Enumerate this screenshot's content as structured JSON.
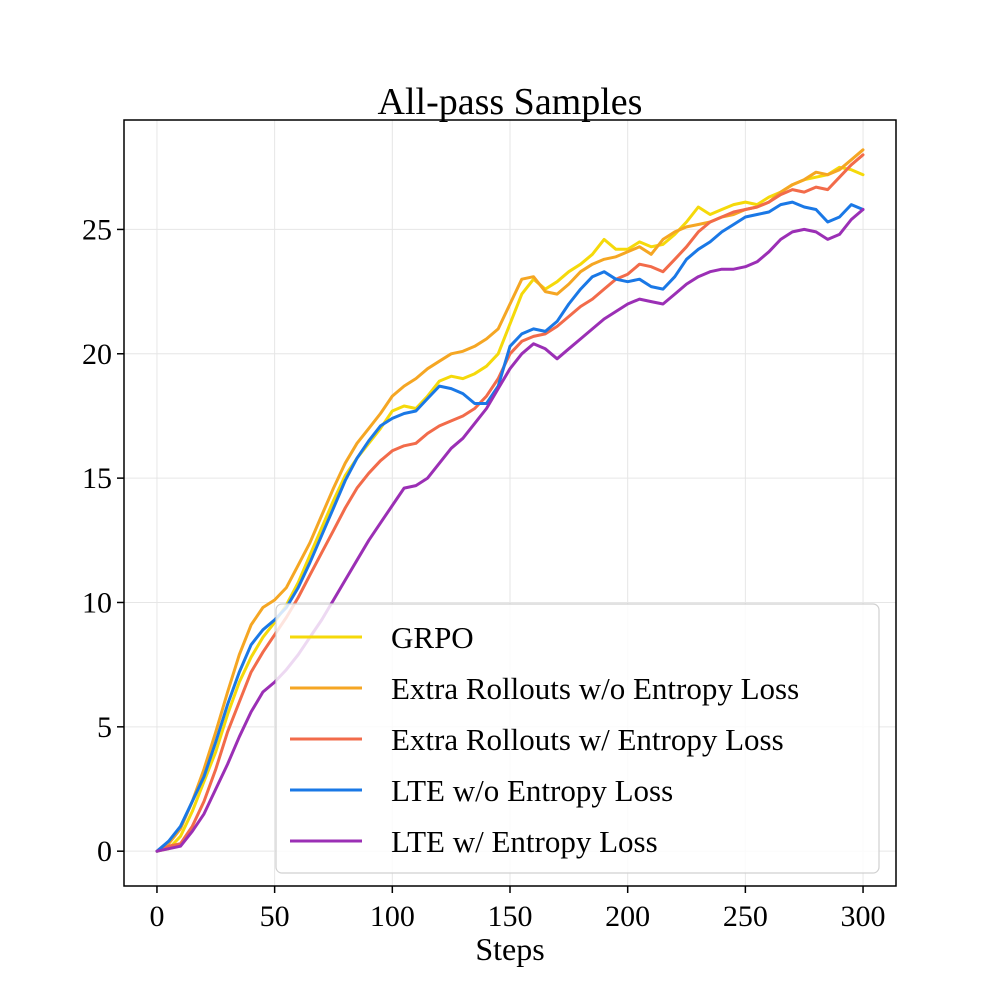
{
  "chart_data": {
    "type": "line",
    "title": "All-pass Samples",
    "xlabel": "Steps",
    "ylabel": "",
    "xlim": [
      -14,
      314
    ],
    "ylim": [
      -1.4,
      29.4
    ],
    "xticks": [
      0,
      50,
      100,
      150,
      200,
      250,
      300
    ],
    "yticks": [
      0,
      5,
      10,
      15,
      20,
      25
    ],
    "grid": true,
    "legend_position": "lower-right",
    "series": [
      {
        "name": "GRPO",
        "color": "#f5d90a",
        "x": [
          0,
          5,
          10,
          15,
          20,
          25,
          30,
          35,
          40,
          45,
          50,
          55,
          60,
          65,
          70,
          75,
          80,
          85,
          90,
          95,
          100,
          105,
          110,
          115,
          120,
          125,
          130,
          135,
          140,
          145,
          150,
          155,
          160,
          165,
          170,
          175,
          180,
          185,
          190,
          195,
          200,
          205,
          210,
          215,
          220,
          225,
          230,
          235,
          240,
          245,
          250,
          255,
          260,
          265,
          270,
          275,
          280,
          285,
          290,
          295,
          300
        ],
        "y": [
          0,
          0.1,
          0.6,
          1.6,
          2.8,
          4.0,
          5.5,
          6.8,
          7.8,
          8.6,
          9.2,
          9.9,
          10.8,
          11.9,
          13.0,
          14.1,
          15.1,
          15.8,
          16.4,
          17.0,
          17.7,
          17.9,
          17.8,
          18.3,
          18.9,
          19.1,
          19.0,
          19.2,
          19.5,
          20.0,
          21.2,
          22.4,
          23.0,
          22.6,
          22.9,
          23.3,
          23.6,
          24.0,
          24.6,
          24.2,
          24.2,
          24.5,
          24.3,
          24.4,
          24.8,
          25.3,
          25.9,
          25.6,
          25.8,
          26.0,
          26.1,
          26.0,
          26.3,
          26.5,
          26.8,
          27.0,
          27.1,
          27.2,
          27.5,
          27.4,
          27.2
        ]
      },
      {
        "name": "Extra Rollouts w/o Entropy Loss",
        "color": "#f5a623",
        "x": [
          0,
          5,
          10,
          15,
          20,
          25,
          30,
          35,
          40,
          45,
          50,
          55,
          60,
          65,
          70,
          75,
          80,
          85,
          90,
          95,
          100,
          105,
          110,
          115,
          120,
          125,
          130,
          135,
          140,
          145,
          150,
          155,
          160,
          165,
          170,
          175,
          180,
          185,
          190,
          195,
          200,
          205,
          210,
          215,
          220,
          225,
          230,
          235,
          240,
          245,
          250,
          255,
          260,
          265,
          270,
          275,
          280,
          285,
          290,
          295,
          300
        ],
        "y": [
          0,
          0.3,
          0.9,
          2.0,
          3.3,
          4.8,
          6.4,
          7.9,
          9.1,
          9.8,
          10.1,
          10.6,
          11.5,
          12.4,
          13.5,
          14.6,
          15.6,
          16.4,
          17.0,
          17.6,
          18.3,
          18.7,
          19.0,
          19.4,
          19.7,
          20.0,
          20.1,
          20.3,
          20.6,
          21.0,
          22.0,
          23.0,
          23.1,
          22.5,
          22.4,
          22.8,
          23.3,
          23.6,
          23.8,
          23.9,
          24.1,
          24.3,
          24.0,
          24.6,
          24.9,
          25.1,
          25.2,
          25.3,
          25.5,
          25.6,
          25.8,
          25.9,
          26.1,
          26.5,
          26.8,
          27.0,
          27.3,
          27.2,
          27.4,
          27.8,
          28.2
        ]
      },
      {
        "name": "Extra Rollouts w/ Entropy Loss",
        "color": "#f26b4a",
        "x": [
          0,
          5,
          10,
          15,
          20,
          25,
          30,
          35,
          40,
          45,
          50,
          55,
          60,
          65,
          70,
          75,
          80,
          85,
          90,
          95,
          100,
          105,
          110,
          115,
          120,
          125,
          130,
          135,
          140,
          145,
          150,
          155,
          160,
          165,
          170,
          175,
          180,
          185,
          190,
          195,
          200,
          205,
          210,
          215,
          220,
          225,
          230,
          235,
          240,
          245,
          250,
          255,
          260,
          265,
          270,
          275,
          280,
          285,
          290,
          295,
          300
        ],
        "y": [
          0,
          0.2,
          0.3,
          1.0,
          2.0,
          3.3,
          4.8,
          6.0,
          7.2,
          8.0,
          8.7,
          9.4,
          10.2,
          11.1,
          12.0,
          12.9,
          13.8,
          14.6,
          15.2,
          15.7,
          16.1,
          16.3,
          16.4,
          16.8,
          17.1,
          17.3,
          17.5,
          17.8,
          18.3,
          19.0,
          20.0,
          20.5,
          20.7,
          20.8,
          21.1,
          21.5,
          21.9,
          22.2,
          22.6,
          23.0,
          23.2,
          23.6,
          23.5,
          23.3,
          23.8,
          24.3,
          24.9,
          25.3,
          25.5,
          25.7,
          25.8,
          25.9,
          26.1,
          26.4,
          26.6,
          26.5,
          26.7,
          26.6,
          27.1,
          27.6,
          28.0
        ]
      },
      {
        "name": "LTE w/o Entropy Loss",
        "color": "#1a78e6",
        "x": [
          0,
          5,
          10,
          15,
          20,
          25,
          30,
          35,
          40,
          45,
          50,
          55,
          60,
          65,
          70,
          75,
          80,
          85,
          90,
          95,
          100,
          105,
          110,
          115,
          120,
          125,
          130,
          135,
          140,
          145,
          150,
          155,
          160,
          165,
          170,
          175,
          180,
          185,
          190,
          195,
          200,
          205,
          210,
          215,
          220,
          225,
          230,
          235,
          240,
          245,
          250,
          255,
          260,
          265,
          270,
          275,
          280,
          285,
          290,
          295,
          300
        ],
        "y": [
          0,
          0.4,
          1.0,
          2.0,
          3.0,
          4.4,
          5.9,
          7.2,
          8.3,
          8.9,
          9.3,
          9.8,
          10.6,
          11.6,
          12.7,
          13.8,
          14.9,
          15.8,
          16.5,
          17.1,
          17.4,
          17.6,
          17.7,
          18.2,
          18.7,
          18.6,
          18.4,
          18.0,
          18.0,
          18.7,
          20.3,
          20.8,
          21.0,
          20.9,
          21.3,
          22.0,
          22.6,
          23.1,
          23.3,
          23.0,
          22.9,
          23.0,
          22.7,
          22.6,
          23.1,
          23.8,
          24.2,
          24.5,
          24.9,
          25.2,
          25.5,
          25.6,
          25.7,
          26.0,
          26.1,
          25.9,
          25.8,
          25.3,
          25.5,
          26.0,
          25.8
        ]
      },
      {
        "name": "LTE w/ Entropy Loss",
        "color": "#9b2fb5",
        "x": [
          0,
          5,
          10,
          15,
          20,
          25,
          30,
          35,
          40,
          45,
          50,
          55,
          60,
          65,
          70,
          75,
          80,
          85,
          90,
          95,
          100,
          105,
          110,
          115,
          120,
          125,
          130,
          135,
          140,
          145,
          150,
          155,
          160,
          165,
          170,
          175,
          180,
          185,
          190,
          195,
          200,
          205,
          210,
          215,
          220,
          225,
          230,
          235,
          240,
          245,
          250,
          255,
          260,
          265,
          270,
          275,
          280,
          285,
          290,
          295,
          300
        ],
        "y": [
          0,
          0.1,
          0.2,
          0.8,
          1.5,
          2.5,
          3.5,
          4.6,
          5.6,
          6.4,
          6.8,
          7.3,
          7.9,
          8.6,
          9.3,
          10.1,
          10.9,
          11.7,
          12.5,
          13.2,
          13.9,
          14.6,
          14.7,
          15.0,
          15.6,
          16.2,
          16.6,
          17.2,
          17.8,
          18.6,
          19.4,
          20.0,
          20.4,
          20.2,
          19.8,
          20.2,
          20.6,
          21.0,
          21.4,
          21.7,
          22.0,
          22.2,
          22.1,
          22.0,
          22.4,
          22.8,
          23.1,
          23.3,
          23.4,
          23.4,
          23.5,
          23.7,
          24.1,
          24.6,
          24.9,
          25.0,
          24.9,
          24.6,
          24.8,
          25.4,
          25.8
        ]
      }
    ]
  }
}
